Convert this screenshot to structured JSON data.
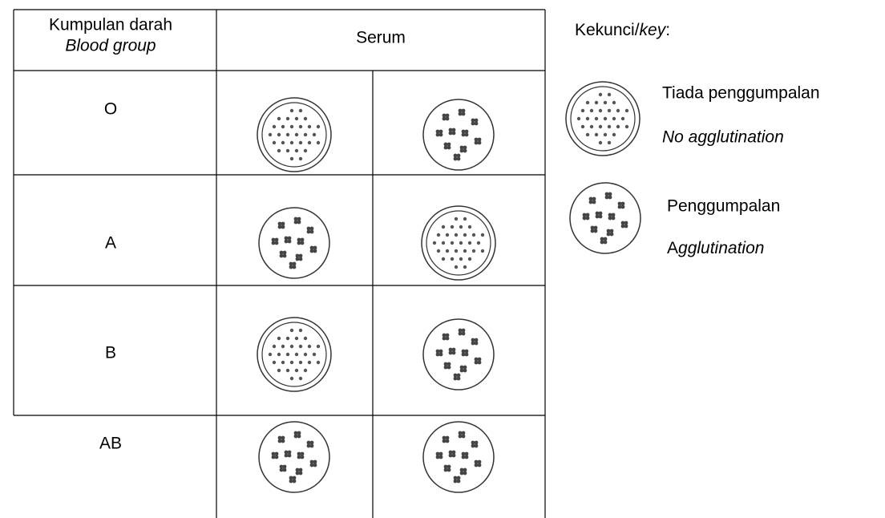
{
  "table": {
    "header": {
      "blood_group": "Kumpulan darah",
      "blood_group_en": "Blood group",
      "serum": "Serum"
    },
    "rows": [
      {
        "group": "O"
      },
      {
        "group": "A"
      },
      {
        "group": "B"
      },
      {
        "group": "AB"
      }
    ]
  },
  "key": {
    "label_prefix": "Kekunci/",
    "label_italic": "key",
    "label_suffix": ":",
    "no_agglutination": "Tiada penggumpalan",
    "no_agglutination_en": "No agglutination",
    "agglutination": "Penggumpalan",
    "agglutination_en_prefix": "A",
    "agglutination_en_italic": "gglutination"
  }
}
